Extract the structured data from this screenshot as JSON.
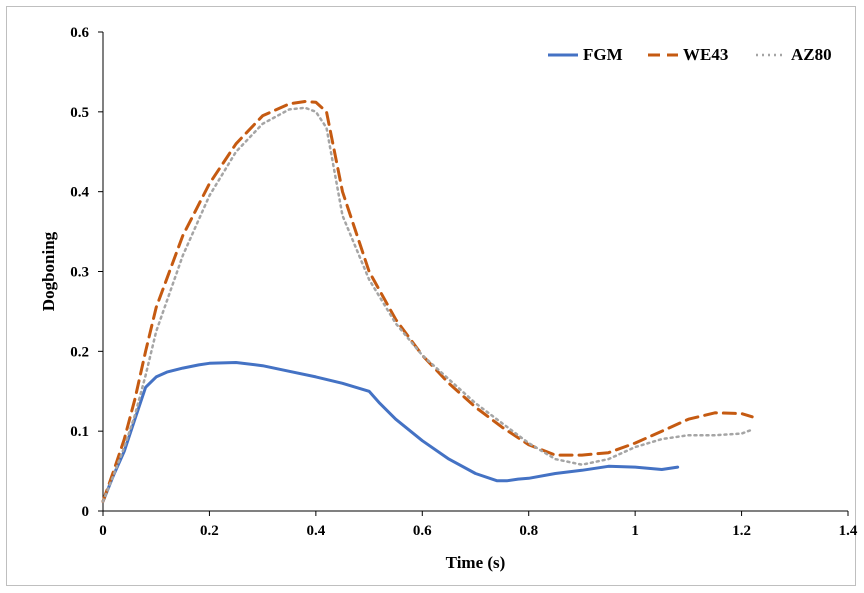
{
  "chart_data": {
    "type": "line",
    "xlabel": "Time (s)",
    "ylabel": "Dogboning",
    "xlim": [
      0,
      1.4
    ],
    "ylim": [
      0,
      0.6
    ],
    "xticks": [
      "0",
      "0.2",
      "0.4",
      "0.6",
      "0.8",
      "1",
      "1.2",
      "1.4"
    ],
    "yticks": [
      "0",
      "0.1",
      "0.2",
      "0.3",
      "0.4",
      "0.5",
      "0.6"
    ],
    "grid": false,
    "legend_position": "top-right",
    "series": [
      {
        "name": "FGM",
        "color": "#4472C4",
        "dash": "solid",
        "x": [
          0,
          0.02,
          0.04,
          0.06,
          0.08,
          0.1,
          0.12,
          0.15,
          0.18,
          0.2,
          0.25,
          0.3,
          0.35,
          0.4,
          0.45,
          0.5,
          0.52,
          0.55,
          0.6,
          0.65,
          0.7,
          0.74,
          0.76,
          0.78,
          0.8,
          0.85,
          0.9,
          0.95,
          1.0,
          1.05,
          1.08
        ],
        "y": [
          0.012,
          0.045,
          0.075,
          0.115,
          0.155,
          0.168,
          0.174,
          0.179,
          0.183,
          0.185,
          0.186,
          0.182,
          0.175,
          0.168,
          0.16,
          0.15,
          0.135,
          0.115,
          0.088,
          0.065,
          0.047,
          0.038,
          0.038,
          0.04,
          0.041,
          0.047,
          0.051,
          0.056,
          0.055,
          0.052,
          0.055
        ]
      },
      {
        "name": "WE43",
        "color": "#C55A11",
        "dash": "dashed",
        "x": [
          0,
          0.02,
          0.04,
          0.06,
          0.08,
          0.1,
          0.15,
          0.2,
          0.25,
          0.3,
          0.35,
          0.38,
          0.4,
          0.42,
          0.45,
          0.5,
          0.55,
          0.6,
          0.65,
          0.7,
          0.75,
          0.8,
          0.85,
          0.9,
          0.95,
          1.0,
          1.05,
          1.1,
          1.15,
          1.2,
          1.22
        ],
        "y": [
          0.012,
          0.05,
          0.09,
          0.14,
          0.2,
          0.255,
          0.345,
          0.41,
          0.46,
          0.495,
          0.51,
          0.513,
          0.512,
          0.5,
          0.4,
          0.3,
          0.24,
          0.195,
          0.16,
          0.13,
          0.105,
          0.083,
          0.07,
          0.07,
          0.073,
          0.085,
          0.1,
          0.115,
          0.123,
          0.122,
          0.118
        ]
      },
      {
        "name": "AZ80",
        "color": "#A5A5A5",
        "dash": "dotted",
        "x": [
          0,
          0.02,
          0.04,
          0.06,
          0.08,
          0.1,
          0.15,
          0.2,
          0.25,
          0.3,
          0.35,
          0.38,
          0.4,
          0.42,
          0.45,
          0.5,
          0.55,
          0.6,
          0.65,
          0.7,
          0.75,
          0.8,
          0.85,
          0.9,
          0.95,
          1.0,
          1.05,
          1.1,
          1.15,
          1.2,
          1.22
        ],
        "y": [
          0.012,
          0.045,
          0.08,
          0.12,
          0.17,
          0.225,
          0.32,
          0.395,
          0.45,
          0.485,
          0.503,
          0.505,
          0.5,
          0.48,
          0.37,
          0.29,
          0.235,
          0.195,
          0.165,
          0.135,
          0.11,
          0.085,
          0.065,
          0.058,
          0.065,
          0.08,
          0.09,
          0.095,
          0.095,
          0.097,
          0.102
        ]
      }
    ]
  }
}
